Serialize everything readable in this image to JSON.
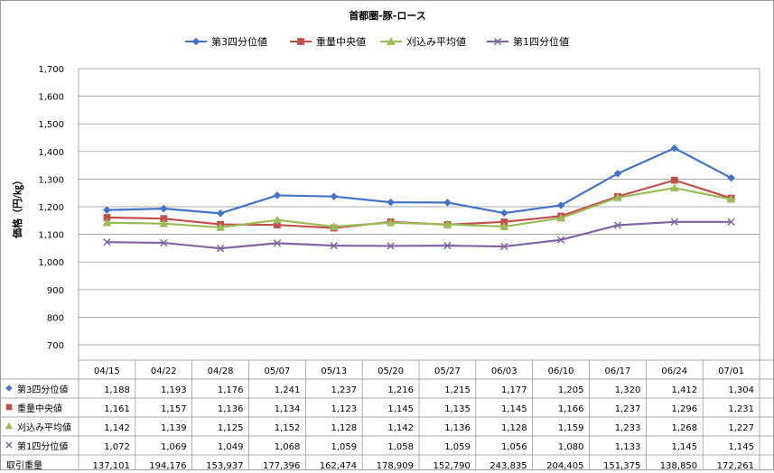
{
  "chart_data": {
    "type": "line",
    "title": "首都圏-豚-ロース",
    "ylabel": "価格（円/㎏）",
    "ylim": [
      700,
      1700
    ],
    "ystep": 100,
    "grid": true,
    "legend_position": "top",
    "categories": [
      "04/15",
      "04/22",
      "04/28",
      "05/07",
      "05/13",
      "05/20",
      "05/27",
      "06/03",
      "06/10",
      "06/17",
      "06/24",
      "07/01"
    ],
    "series": [
      {
        "name": "第3四分位値",
        "color": "#4472C4",
        "marker": "diamond",
        "values": [
          1188,
          1193,
          1176,
          1241,
          1237,
          1216,
          1215,
          1177,
          1205,
          1320,
          1412,
          1304
        ],
        "labels": [
          "1,188",
          "1,193",
          "1,176",
          "1,241",
          "1,237",
          "1,216",
          "1,215",
          "1,177",
          "1,205",
          "1,320",
          "1,412",
          "1,304"
        ]
      },
      {
        "name": "重量中央値",
        "color": "#C0504D",
        "marker": "square",
        "values": [
          1161,
          1157,
          1136,
          1134,
          1123,
          1145,
          1135,
          1145,
          1166,
          1237,
          1296,
          1231
        ],
        "labels": [
          "1,161",
          "1,157",
          "1,136",
          "1,134",
          "1,123",
          "1,145",
          "1,135",
          "1,145",
          "1,166",
          "1,237",
          "1,296",
          "1,231"
        ]
      },
      {
        "name": "刈込み平均値",
        "color": "#9BBB59",
        "marker": "triangle",
        "values": [
          1142,
          1139,
          1125,
          1152,
          1128,
          1142,
          1136,
          1128,
          1159,
          1233,
          1268,
          1227
        ],
        "labels": [
          "1,142",
          "1,139",
          "1,125",
          "1,152",
          "1,128",
          "1,142",
          "1,136",
          "1,128",
          "1,159",
          "1,233",
          "1,268",
          "1,227"
        ]
      },
      {
        "name": "第1四分位値",
        "color": "#8064A2",
        "marker": "x",
        "values": [
          1072,
          1069,
          1049,
          1068,
          1059,
          1058,
          1059,
          1056,
          1080,
          1133,
          1145,
          1145
        ],
        "labels": [
          "1,072",
          "1,069",
          "1,049",
          "1,068",
          "1,059",
          "1,058",
          "1,059",
          "1,056",
          "1,080",
          "1,133",
          "1,145",
          "1,145"
        ]
      }
    ],
    "extra_row": {
      "name": "取引重量",
      "labels": [
        "137,101",
        "194,176",
        "153,937",
        "177,396",
        "162,474",
        "178,909",
        "152,790",
        "243,835",
        "204,405",
        "151,375",
        "138,850",
        "172,261"
      ]
    }
  }
}
